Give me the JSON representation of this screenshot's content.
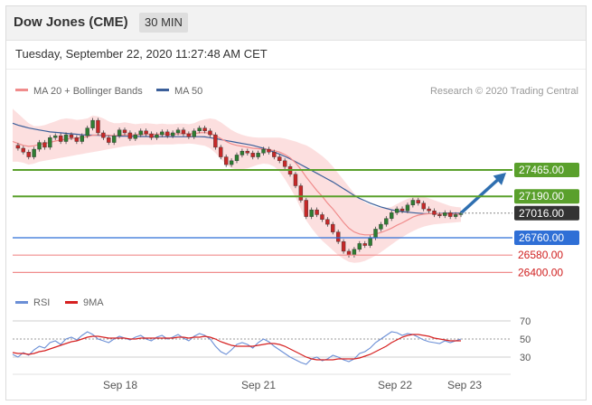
{
  "header": {
    "title": "Dow Jones (CME)",
    "timeframe": "30 MIN",
    "timestamp": "Tuesday, September 22, 2020 11:27:48 AM CET"
  },
  "legend": {
    "ma20_label": "MA 20 + Bollinger Bands",
    "ma50_label": "MA 50",
    "credit": "Research © 2020 Trading Central",
    "rsi_label": "RSI",
    "ma9_label": "9MA"
  },
  "colors": {
    "resistance": "#5aa02c",
    "support": "#2f6fd6",
    "support_light": "#f08c8c",
    "current": "#333333",
    "ma20": "#f08c8c",
    "ma50": "#3b5f9a",
    "band_fill": "#fbd9d9",
    "candle_up": "#2e7d32",
    "candle_down": "#c62828",
    "arrow": "#2f6fb0",
    "rsi": "#6b8fd6",
    "ma9": "#d62020"
  },
  "chart_data": [
    {
      "type": "candlestick",
      "title": "Dow Jones (CME) 30 MIN",
      "x_ticks": [
        "Sep 18",
        "Sep 21",
        "Sep 22",
        "Sep 23"
      ],
      "levels": [
        {
          "value": 27465,
          "label": "27465.00",
          "kind": "resistance"
        },
        {
          "value": 27190,
          "label": "27190.00",
          "kind": "resistance"
        },
        {
          "value": 27016,
          "label": "27016.00",
          "kind": "current"
        },
        {
          "value": 26760,
          "label": "26760.00",
          "kind": "support"
        },
        {
          "value": 26580,
          "label": "26580.00",
          "kind": "support_light"
        },
        {
          "value": 26400,
          "label": "26400.00",
          "kind": "support_light"
        }
      ],
      "price_path": [
        27720,
        27690,
        27650,
        27600,
        27680,
        27750,
        27700,
        27800,
        27820,
        27760,
        27830,
        27800,
        27760,
        27820,
        27900,
        27980,
        27850,
        27800,
        27750,
        27820,
        27880,
        27850,
        27790,
        27830,
        27870,
        27840,
        27800,
        27830,
        27860,
        27820,
        27850,
        27880,
        27840,
        27810,
        27870,
        27900,
        27870,
        27830,
        27700,
        27600,
        27520,
        27560,
        27620,
        27660,
        27640,
        27600,
        27640,
        27680,
        27650,
        27600,
        27560,
        27500,
        27420,
        27300,
        27150,
        26980,
        27050,
        27000,
        26950,
        26900,
        26820,
        26720,
        26620,
        26580,
        26640,
        26700,
        26680,
        26760,
        26850,
        26900,
        26960,
        27020,
        27060,
        27040,
        27100,
        27150,
        27120,
        27060,
        27040,
        27000,
        26990,
        27020,
        26980,
        27000,
        27016
      ],
      "ma20_path": [
        27760,
        27740,
        27720,
        27710,
        27715,
        27730,
        27740,
        27750,
        27765,
        27775,
        27785,
        27790,
        27795,
        27800,
        27810,
        27825,
        27830,
        27830,
        27825,
        27820,
        27825,
        27830,
        27830,
        27830,
        27835,
        27835,
        27835,
        27835,
        27838,
        27835,
        27835,
        27840,
        27840,
        27840,
        27842,
        27850,
        27852,
        27845,
        27820,
        27790,
        27760,
        27735,
        27720,
        27710,
        27700,
        27690,
        27685,
        27680,
        27675,
        27665,
        27650,
        27625,
        27590,
        27540,
        27470,
        27390,
        27320,
        27250,
        27190,
        27120,
        27060,
        26990,
        26920,
        26860,
        26820,
        26800,
        26790,
        26790,
        26800,
        26815,
        26835,
        26860,
        26890,
        26915,
        26945,
        26975,
        26995,
        27005,
        27010,
        27010,
        27008,
        27008,
        27006,
        27005,
        27005
      ],
      "ma50_path": [
        27950,
        27930,
        27915,
        27900,
        27890,
        27880,
        27870,
        27860,
        27855,
        27850,
        27845,
        27840,
        27835,
        27830,
        27828,
        27826,
        27824,
        27822,
        27820,
        27818,
        27816,
        27815,
        27814,
        27813,
        27812,
        27812,
        27811,
        27810,
        27810,
        27810,
        27810,
        27810,
        27810,
        27810,
        27810,
        27810,
        27808,
        27800,
        27790,
        27780,
        27770,
        27760,
        27750,
        27740,
        27730,
        27720,
        27705,
        27690,
        27670,
        27650,
        27630,
        27605,
        27580,
        27550,
        27520,
        27490,
        27460,
        27430,
        27400,
        27370,
        27340,
        27305,
        27270,
        27235,
        27200,
        27170,
        27145,
        27120,
        27100,
        27080,
        27065,
        27050,
        27040,
        27032,
        27026,
        27020,
        27016,
        27012,
        27010,
        27010,
        27012,
        27014,
        27015,
        27016,
        27016
      ],
      "upper_band_path": [
        28100,
        28050,
        28000,
        27950,
        27920,
        27920,
        27930,
        27950,
        27970,
        27990,
        28000,
        27995,
        27985,
        27990,
        28000,
        28030,
        28020,
        28000,
        27970,
        27950,
        27950,
        27960,
        27950,
        27940,
        27945,
        27950,
        27945,
        27940,
        27945,
        27940,
        27940,
        27945,
        27945,
        27940,
        27950,
        27975,
        27990,
        28000,
        27990,
        27960,
        27920,
        27880,
        27850,
        27830,
        27815,
        27805,
        27800,
        27800,
        27800,
        27800,
        27800,
        27790,
        27775,
        27760,
        27740,
        27720,
        27690,
        27650,
        27610,
        27560,
        27500,
        27430,
        27360,
        27290,
        27220,
        27170,
        27130,
        27100,
        27080,
        27070,
        27070,
        27080,
        27110,
        27140,
        27165,
        27180,
        27190,
        27185,
        27170,
        27150,
        27130,
        27110,
        27090,
        27080,
        27075
      ],
      "lower_band_path": [
        27550,
        27550,
        27540,
        27520,
        27530,
        27550,
        27560,
        27570,
        27580,
        27590,
        27600,
        27610,
        27620,
        27630,
        27640,
        27650,
        27660,
        27670,
        27680,
        27690,
        27700,
        27710,
        27715,
        27720,
        27725,
        27725,
        27725,
        27730,
        27730,
        27730,
        27730,
        27735,
        27735,
        27740,
        27735,
        27725,
        27715,
        27690,
        27640,
        27580,
        27520,
        27480,
        27470,
        27470,
        27480,
        27500,
        27520,
        27530,
        27525,
        27500,
        27450,
        27370,
        27280,
        27180,
        27060,
        26940,
        26860,
        26790,
        26730,
        26680,
        26630,
        26580,
        26540,
        26510,
        26500,
        26505,
        26520,
        26545,
        26575,
        26610,
        26650,
        26690,
        26730,
        26765,
        26800,
        26830,
        26855,
        26875,
        26890,
        26900,
        26905,
        26910,
        26915,
        26920,
        26925
      ],
      "projection_target": 27465,
      "y_range": [
        26300,
        28150
      ]
    },
    {
      "type": "line",
      "title": "RSI",
      "y_ticks": [
        70,
        50,
        30
      ],
      "y_range": [
        15,
        80
      ],
      "series": [
        {
          "name": "RSI",
          "values": [
            33,
            30,
            35,
            32,
            38,
            42,
            40,
            46,
            48,
            44,
            50,
            52,
            49,
            54,
            58,
            55,
            50,
            48,
            46,
            50,
            53,
            51,
            49,
            52,
            54,
            50,
            48,
            52,
            54,
            50,
            52,
            55,
            51,
            48,
            53,
            56,
            54,
            50,
            42,
            36,
            33,
            38,
            44,
            46,
            44,
            40,
            46,
            50,
            47,
            42,
            38,
            34,
            30,
            27,
            24,
            22,
            28,
            30,
            26,
            28,
            32,
            30,
            27,
            25,
            28,
            34,
            36,
            40,
            46,
            50,
            54,
            58,
            57,
            54,
            56,
            55,
            52,
            49,
            47,
            46,
            45,
            48,
            46,
            48,
            50
          ]
        },
        {
          "name": "9MA",
          "values": [
            35,
            34,
            34,
            33,
            34,
            36,
            37,
            39,
            41,
            43,
            45,
            47,
            48,
            50,
            52,
            53,
            53,
            52,
            51,
            51,
            51,
            51,
            50,
            50,
            51,
            51,
            51,
            51,
            51,
            51,
            51,
            52,
            52,
            51,
            52,
            52,
            53,
            52,
            50,
            47,
            45,
            43,
            42,
            42,
            42,
            42,
            43,
            44,
            45,
            45,
            44,
            42,
            39,
            36,
            33,
            30,
            28,
            27,
            27,
            27,
            27,
            28,
            28,
            28,
            28,
            29,
            31,
            33,
            36,
            39,
            42,
            46,
            49,
            52,
            54,
            55,
            55,
            54,
            53,
            51,
            50,
            49,
            48,
            48,
            48
          ]
        }
      ]
    }
  ]
}
